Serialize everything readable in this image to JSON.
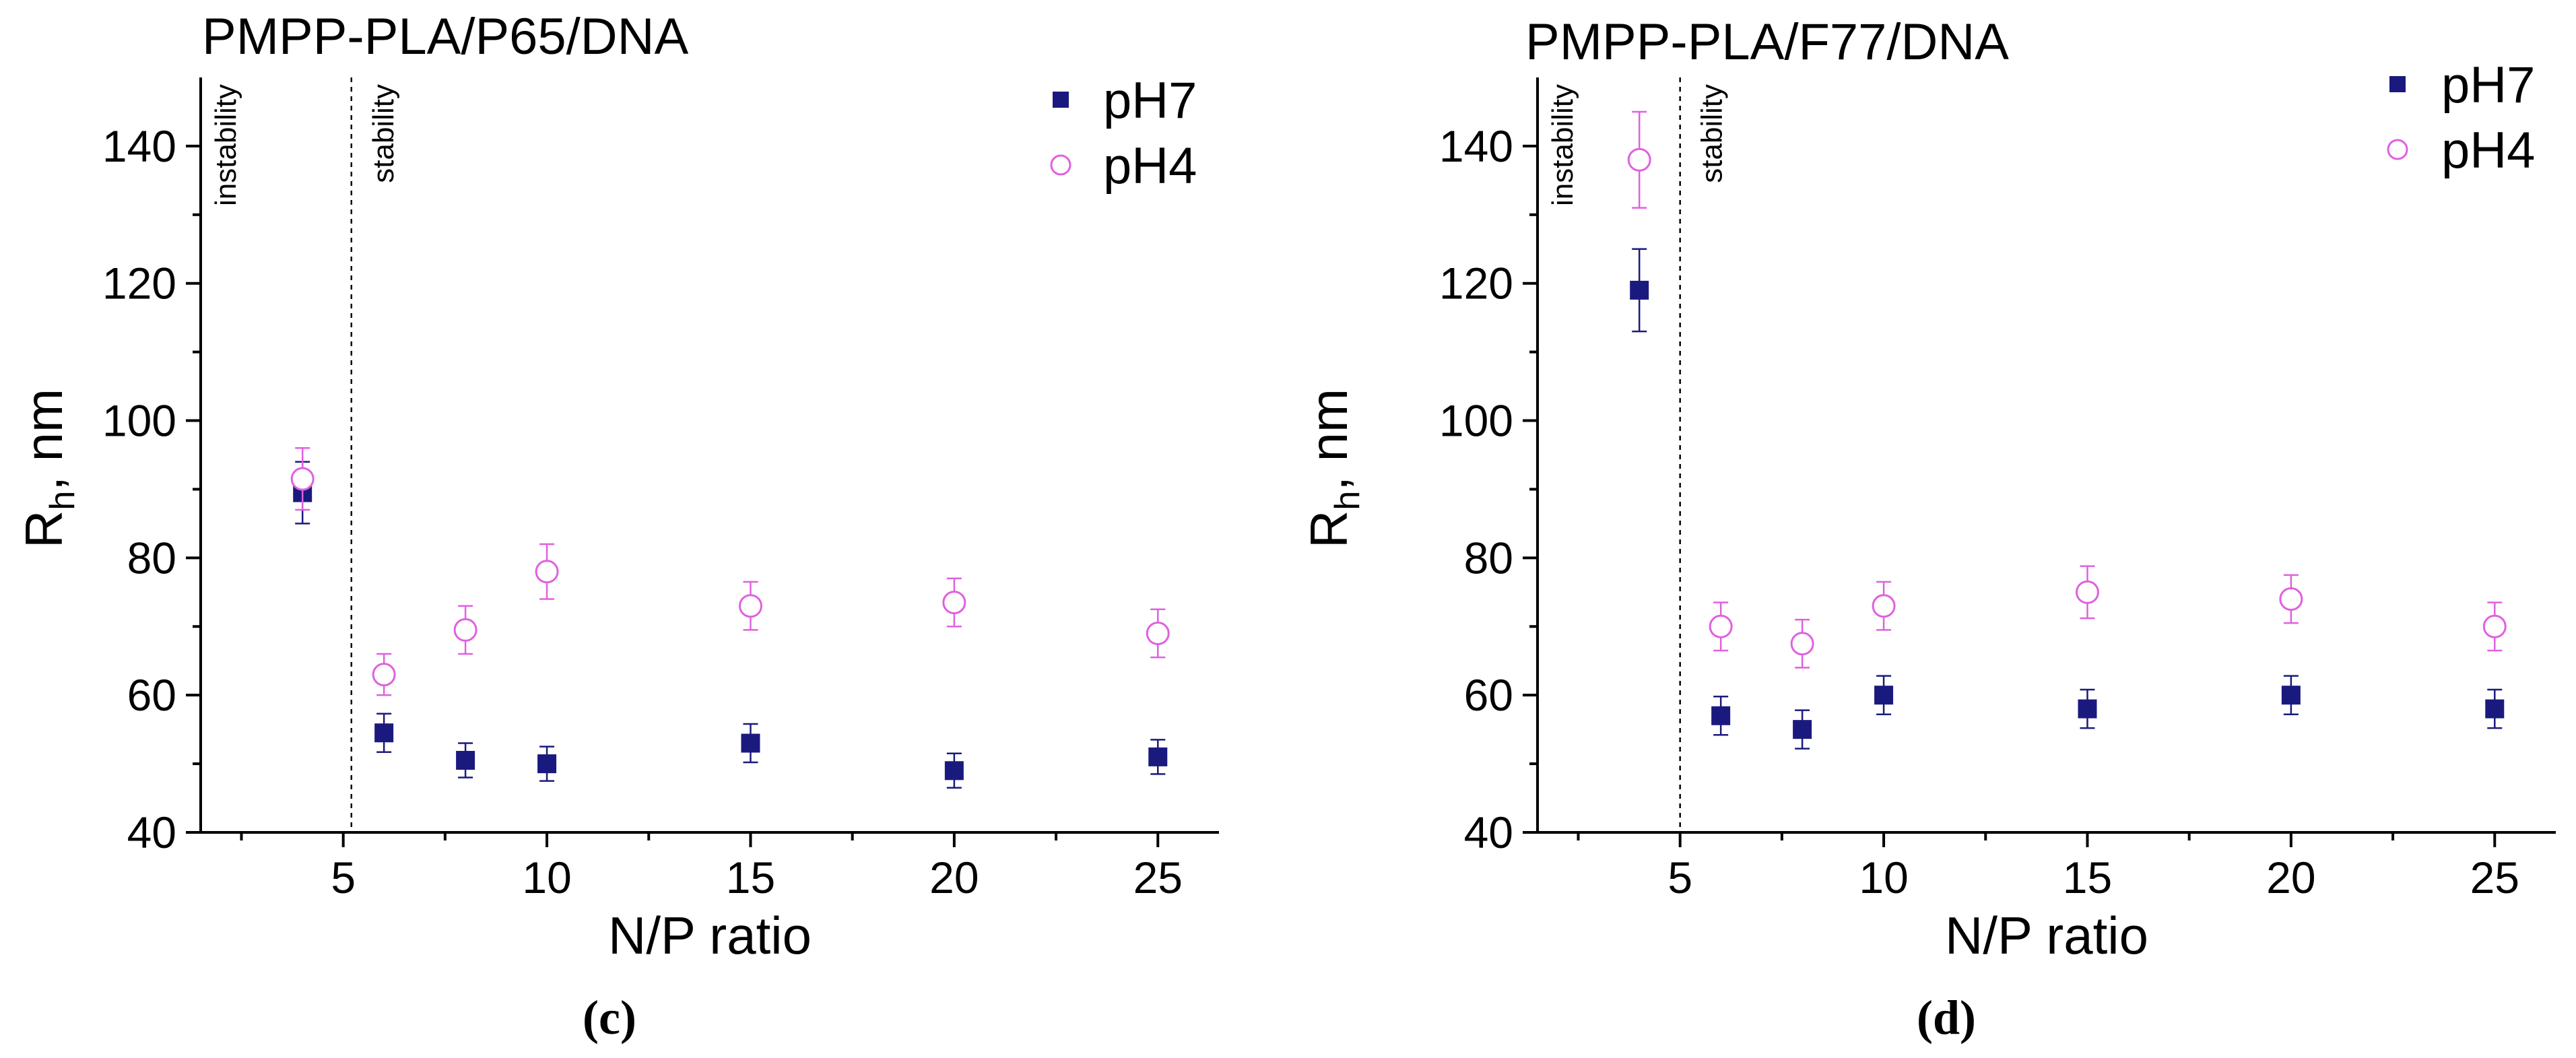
{
  "chart_data": [
    {
      "type": "scatter",
      "panel_label": "c",
      "title": "PMPP-PLA/P65/DNA",
      "xlabel": "N/P ratio",
      "ylabel": "R",
      "ylabel_sub": "h",
      "ylabel_suffix": ", nm",
      "xlim": [
        1.5,
        26.5
      ],
      "ylim": [
        40,
        150
      ],
      "x_ticks": [
        5,
        10,
        15,
        20,
        25
      ],
      "x_minor_ticks": [
        2.5,
        7.5,
        12.5,
        17.5,
        22.5
      ],
      "y_ticks": [
        40,
        60,
        80,
        100,
        120,
        140
      ],
      "divider_x": 5.2,
      "region_labels": [
        "instability",
        "stability"
      ],
      "legend_position": "top-right",
      "series": [
        {
          "name": "pH7",
          "marker": "filled-square",
          "color": "#1a1a7e",
          "x": [
            4,
            6,
            8,
            10,
            15,
            20,
            25
          ],
          "y": [
            89.5,
            54.5,
            50.5,
            50,
            53,
            49,
            51
          ],
          "err": [
            4.5,
            2.8,
            2.5,
            2.5,
            2.8,
            2.5,
            2.5
          ]
        },
        {
          "name": "pH4",
          "marker": "open-circle",
          "color": "#e060e0",
          "x": [
            4,
            6,
            8,
            10,
            15,
            20,
            25
          ],
          "y": [
            91.5,
            63,
            69.5,
            78,
            73,
            73.5,
            69
          ],
          "err": [
            4.5,
            3,
            3.5,
            4,
            3.5,
            3.5,
            3.5
          ]
        }
      ]
    },
    {
      "type": "scatter",
      "panel_label": "d",
      "title": "PMPP-PLA/F77/DNA",
      "xlabel": "N/P ratio",
      "ylabel": "R",
      "ylabel_sub": "h",
      "ylabel_suffix": ", nm",
      "xlim": [
        1.5,
        26.5
      ],
      "ylim": [
        40,
        150
      ],
      "x_ticks": [
        5,
        10,
        15,
        20,
        25
      ],
      "x_minor_ticks": [
        2.5,
        7.5,
        12.5,
        17.5,
        22.5
      ],
      "y_ticks": [
        40,
        60,
        80,
        100,
        120,
        140
      ],
      "divider_x": 5.0,
      "region_labels": [
        "instability",
        "stability"
      ],
      "legend_position": "top-right",
      "series": [
        {
          "name": "pH7",
          "marker": "filled-square",
          "color": "#1a1a7e",
          "x": [
            4,
            6,
            8,
            10,
            15,
            20,
            25
          ],
          "y": [
            119,
            57,
            55,
            60,
            58,
            60,
            58
          ],
          "err": [
            6,
            2.8,
            2.8,
            2.8,
            2.8,
            2.8,
            2.8
          ]
        },
        {
          "name": "pH4",
          "marker": "open-circle",
          "color": "#e060e0",
          "x": [
            4,
            6,
            8,
            10,
            15,
            20,
            25
          ],
          "y": [
            138,
            70,
            67.5,
            73,
            75,
            74,
            70
          ],
          "err": [
            7,
            3.5,
            3.5,
            3.5,
            3.8,
            3.5,
            3.5
          ]
        }
      ]
    }
  ]
}
